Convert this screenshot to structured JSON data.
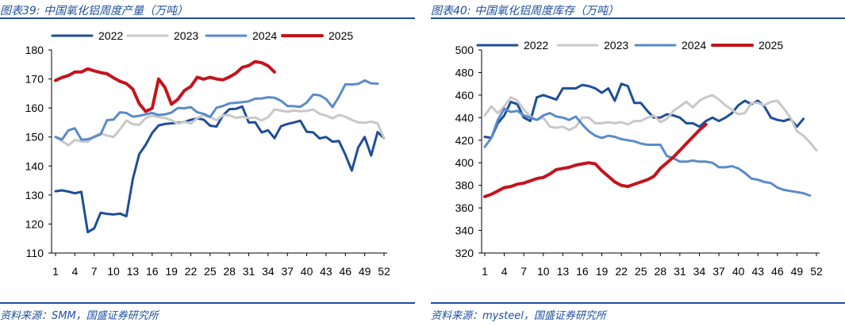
{
  "panels": [
    {
      "title": "图表39:  中国氧化铝周度产量（万吨）",
      "source": "资料来源：SMM，国盛证券研究所",
      "chart_data": {
        "type": "line",
        "title": "中国氧化铝周度产量（万吨）",
        "xlabel": "",
        "ylabel": "",
        "xlim": [
          1,
          52
        ],
        "ylim": [
          110,
          180
        ],
        "yticks": [
          110,
          120,
          130,
          140,
          150,
          160,
          170,
          180
        ],
        "xticks": [
          1,
          4,
          7,
          10,
          13,
          16,
          19,
          22,
          25,
          28,
          31,
          34,
          37,
          40,
          43,
          46,
          49,
          52
        ],
        "legend_position": "top",
        "series": [
          {
            "name": "2022",
            "color": "#1f4e96",
            "width": 3,
            "values": [
              131.3,
              131.6,
              131.2,
              130.6,
              131.1,
              117.2,
              118.5,
              123.9,
              123.5,
              123.3,
              123.6,
              122.7,
              135.5,
              144.1,
              147.3,
              151.4,
              154.0,
              154.5,
              154.7,
              154.9,
              155.2,
              155.9,
              156.4,
              156.0,
              153.9,
              153.6,
              157.5,
              159.6,
              159.7,
              160.5,
              155.0,
              155.1,
              151.6,
              152.3,
              149.6,
              153.7,
              154.5,
              155.0,
              155.6,
              151.8,
              151.6,
              149.5,
              150.0,
              148.4,
              148.6,
              143.9,
              138.4,
              146.4,
              150.0,
              143.6,
              151.7,
              149.6
            ]
          },
          {
            "name": "2023",
            "color": "#c8c8c8",
            "width": 3,
            "values": [
              150.0,
              148.6,
              147.1,
              149.0,
              148.5,
              148.3,
              150.2,
              151.3,
              150.5,
              150.0,
              152.6,
              155.7,
              154.4,
              154.2,
              156.5,
              157.3,
              156.9,
              156.5,
              155.8,
              154.6,
              155.3,
              154.6,
              156.5,
              157.5,
              156.8,
              155.8,
              157.5,
              157.5,
              156.6,
              157.0,
              156.5,
              156.7,
              155.7,
              156.8,
              159.5,
              159.1,
              158.7,
              159.1,
              158.9,
              159.0,
              159.5,
              158.0,
              157.4,
              156.4,
              157.6,
              157.0,
              155.9,
              155.0,
              154.9,
              155.3,
              154.7,
              149.6
            ]
          },
          {
            "name": "2024",
            "color": "#5b8bc9",
            "width": 3,
            "values": [
              150.0,
              149.1,
              152.3,
              153.0,
              149.1,
              149.2,
              150.0,
              150.9,
              155.8,
              156.0,
              158.5,
              158.3,
              157.0,
              157.3,
              157.8,
              158.3,
              157.6,
              157.8,
              158.4,
              160.0,
              159.9,
              160.3,
              158.5,
              158.0,
              156.9,
              160.1,
              160.7,
              161.6,
              161.8,
              162.0,
              162.3,
              163.2,
              163.3,
              163.7,
              163.5,
              162.5,
              160.7,
              160.6,
              160.4,
              161.9,
              164.6,
              164.4,
              163.1,
              160.3,
              163.9,
              168.2,
              168.1,
              168.3,
              169.5,
              168.5,
              168.4,
              null
            ]
          },
          {
            "name": "2025",
            "color": "#c3141e",
            "width": 4,
            "values": [
              169.5,
              170.5,
              171.2,
              172.4,
              172.4,
              173.5,
              172.8,
              172.2,
              171.8,
              170.4,
              169.2,
              168.4,
              166.5,
              161.5,
              158.8,
              159.9,
              170.0,
              167.0,
              161.3,
              163.0,
              166.0,
              167.4,
              170.6,
              169.9,
              170.6,
              170.0,
              169.7,
              170.7,
              172.0,
              174.0,
              174.6,
              176.0,
              175.6,
              174.5,
              172.4,
              null,
              null,
              null,
              null,
              null,
              null,
              null,
              null,
              null,
              null,
              null,
              null,
              null,
              null,
              null,
              null,
              null
            ]
          }
        ]
      }
    },
    {
      "title": "图表40:  中国氧化铝周度库存（万吨）",
      "source": "资料来源：mysteel，国盛证券研究所",
      "chart_data": {
        "type": "line",
        "title": "中国氧化铝周度库存（万吨）",
        "xlabel": "",
        "ylabel": "",
        "xlim": [
          1,
          52
        ],
        "ylim": [
          320,
          500
        ],
        "yticks": [
          320,
          340,
          360,
          380,
          400,
          420,
          440,
          460,
          480,
          500
        ],
        "xticks": [
          1,
          4,
          7,
          10,
          13,
          16,
          19,
          22,
          25,
          28,
          31,
          34,
          37,
          40,
          43,
          46,
          49,
          52
        ],
        "legend_position": "top",
        "series": [
          {
            "name": "2022",
            "color": "#1f4e96",
            "width": 3,
            "values": [
              423,
              422,
              435,
              442,
              454,
              452,
              440,
              437,
              458,
              460,
              458,
              456,
              466,
              466,
              466,
              469,
              468,
              466,
              462,
              466,
              455,
              470,
              468,
              453,
              453,
              446,
              440,
              440,
              443,
              442,
              440,
              435,
              435,
              432,
              437,
              440,
              437,
              440,
              444,
              451,
              455,
              452,
              455,
              450,
              440,
              438,
              437,
              439,
              432,
              439,
              null,
              null
            ]
          },
          {
            "name": "2023",
            "color": "#c8c8c8",
            "width": 3,
            "values": [
              442,
              450,
              444,
              450,
              458,
              455,
              447,
              441,
              438,
              440,
              432,
              431,
              432,
              429,
              432,
              440,
              440,
              435,
              435,
              436,
              435,
              436,
              434,
              437,
              437,
              440,
              442,
              436,
              439,
              446,
              450,
              454,
              449,
              455,
              458,
              460,
              456,
              451,
              447,
              443,
              444,
              453,
              453,
              451,
              454,
              455,
              448,
              440,
              428,
              424,
              418,
              411
            ]
          },
          {
            "name": "2024",
            "color": "#5b8bc9",
            "width": 3,
            "values": [
              414,
              422,
              438,
              448,
              445,
              446,
              442,
              440,
              438,
              442,
              444,
              441,
              440,
              438,
              441,
              434,
              428,
              424,
              422,
              424,
              423,
              421,
              420,
              419,
              417,
              416,
              416,
              416,
              406,
              404,
              401,
              401,
              402,
              401,
              401,
              400,
              396,
              396,
              397,
              395,
              391,
              386,
              385,
              383,
              382,
              378,
              376,
              375,
              374,
              373,
              371,
              null
            ]
          },
          {
            "name": "2025",
            "color": "#c3141e",
            "width": 4,
            "values": [
              370,
              372,
              375,
              378,
              379,
              381,
              382,
              384,
              386,
              387,
              390,
              394,
              395,
              396,
              398,
              399,
              400,
              399,
              393,
              388,
              383,
              380,
              379,
              381,
              383,
              385,
              388,
              395,
              400,
              405,
              411,
              417,
              423,
              429,
              434,
              null,
              null,
              null,
              null,
              null,
              null,
              null,
              null,
              null,
              null,
              null,
              null,
              null,
              null,
              null,
              null,
              null
            ]
          }
        ]
      }
    }
  ]
}
